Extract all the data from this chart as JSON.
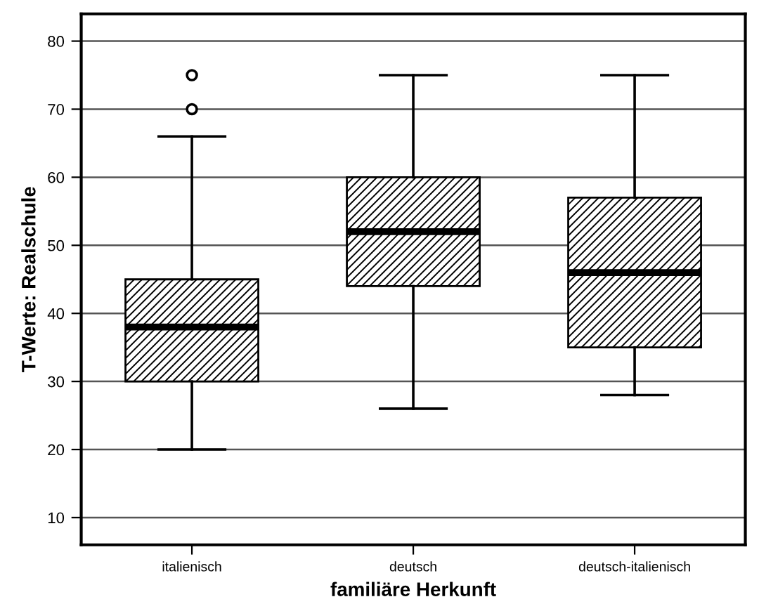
{
  "chart_data": {
    "type": "box",
    "xlabel": "familiäre Herkunft",
    "ylabel": "T-Werte: Realschule",
    "categories": [
      "italienisch",
      "deutsch",
      "deutsch-italienisch"
    ],
    "boxes": [
      {
        "low": 20,
        "q1": 30,
        "median": 38,
        "q3": 45,
        "high": 66,
        "outliers": [
          70,
          75
        ]
      },
      {
        "low": 26,
        "q1": 44,
        "median": 52,
        "q3": 60,
        "high": 75
      },
      {
        "low": 28,
        "q1": 35,
        "median": 46,
        "q3": 57,
        "high": 75
      }
    ],
    "ylim": [
      6,
      84
    ],
    "yticks": [
      10,
      20,
      30,
      40,
      50,
      60,
      70,
      80
    ],
    "grid": "y",
    "color": "#000000"
  }
}
